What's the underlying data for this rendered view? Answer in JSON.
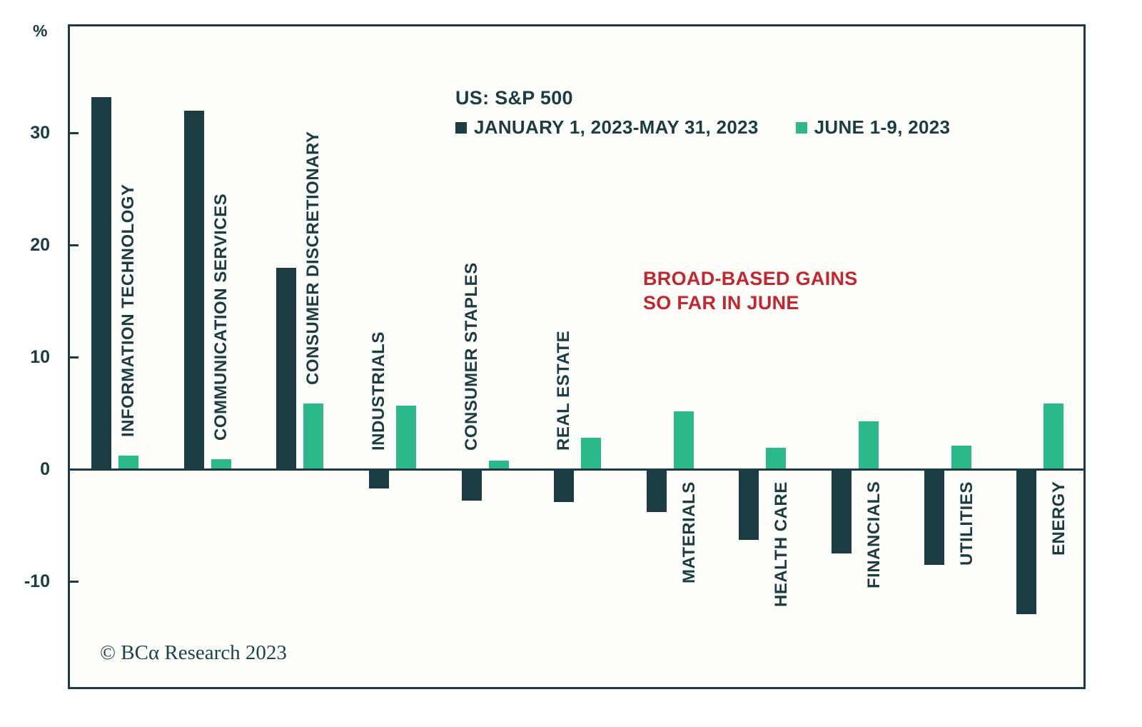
{
  "chart_data": {
    "type": "bar",
    "title": "US: S&P 500",
    "unit_label": "%",
    "categories": [
      "INFORMATION TECHNOLOGY",
      "COMMUNICATION SERVICES",
      "CONSUMER DISCRETIONARY",
      "INDUSTRIALS",
      "CONSUMER STAPLES",
      "REAL ESTATE",
      "MATERIALS",
      "HEALTH CARE",
      "FINANCIALS",
      "UTILITIES",
      "ENERGY"
    ],
    "series": [
      {
        "name": "JANUARY 1, 2023-MAY 31, 2023",
        "color": "#1b3c42",
        "values": [
          33.2,
          32.0,
          18.0,
          -1.7,
          -2.8,
          -2.9,
          -3.8,
          -6.3,
          -7.5,
          -8.5,
          -12.9
        ]
      },
      {
        "name": "JUNE 1-9, 2023",
        "color": "#2bb98c",
        "values": [
          1.2,
          0.9,
          5.9,
          5.7,
          0.8,
          2.8,
          5.2,
          1.9,
          4.3,
          2.1,
          5.9
        ]
      }
    ],
    "ylabel": "",
    "xlabel": "",
    "yticks": [
      30,
      20,
      10,
      0,
      -10
    ],
    "ylim": [
      -19.6,
      39.7
    ],
    "grid": false,
    "legend_position": "top-center",
    "label_below": [
      false,
      false,
      false,
      false,
      false,
      false,
      true,
      true,
      true,
      true,
      true
    ],
    "annotation": {
      "line1": "BROAD-BASED GAINS",
      "line2": "SO FAR IN JUNE",
      "color": "#c2262e"
    },
    "copyright": "© BCα Research 2023"
  }
}
